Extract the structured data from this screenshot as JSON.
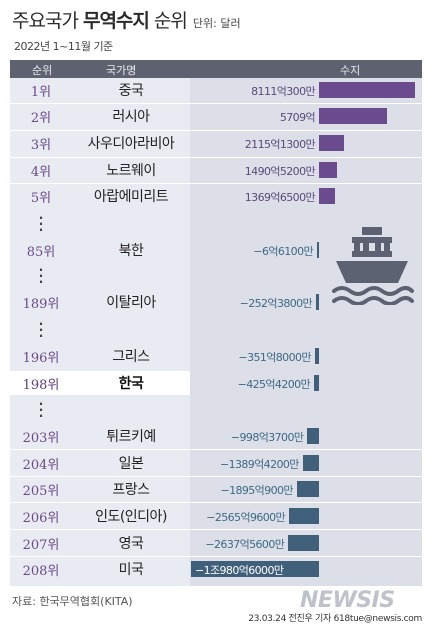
{
  "header_text": {
    "title_normal_1": "주요국가 ",
    "title_bold": "무역수지",
    "title_normal_2": " 순위",
    "unit": "단위: 달러",
    "subtitle": "2022년 1~11월 기준",
    "col_rank": "순위",
    "col_country": "국가명",
    "col_balance": "수지"
  },
  "chart_data": {
    "type": "bar",
    "title": "주요국가 무역수지 순위",
    "unit": "단위: 달러",
    "subtitle": "2022년 1~11월 기준",
    "columns": [
      "순위",
      "국가명",
      "수지"
    ],
    "value_unit": "억 달러",
    "rows": [
      {
        "rank": "1위",
        "country": "중국",
        "label": "8111억300만",
        "value": 8111.03,
        "highlight": false
      },
      {
        "rank": "2위",
        "country": "러시아",
        "label": "5709억",
        "value": 5709.0,
        "highlight": false
      },
      {
        "rank": "3위",
        "country": "사우디아라비아",
        "label": "2115억1300만",
        "value": 2115.13,
        "highlight": false
      },
      {
        "rank": "4위",
        "country": "노르웨이",
        "label": "1490억5200만",
        "value": 1490.52,
        "highlight": false
      },
      {
        "rank": "5위",
        "country": "아랍에미리트",
        "label": "1369억6500만",
        "value": 1369.65,
        "highlight": false
      },
      {
        "rank": "85위",
        "country": "북한",
        "label": "−6억6100만",
        "value": -6.61,
        "highlight": false
      },
      {
        "rank": "189위",
        "country": "이탈리아",
        "label": "−252억3800만",
        "value": -252.38,
        "highlight": false
      },
      {
        "rank": "196위",
        "country": "그리스",
        "label": "−351억8000만",
        "value": -351.8,
        "highlight": false
      },
      {
        "rank": "198위",
        "country": "한국",
        "label": "−425억4200만",
        "value": -425.42,
        "highlight": true
      },
      {
        "rank": "203위",
        "country": "튀르키예",
        "label": "−998억3700만",
        "value": -998.37,
        "highlight": false
      },
      {
        "rank": "204위",
        "country": "일본",
        "label": "−1389억4200만",
        "value": -1389.42,
        "highlight": false
      },
      {
        "rank": "205위",
        "country": "프랑스",
        "label": "−1895억900만",
        "value": -1895.09,
        "highlight": false
      },
      {
        "rank": "206위",
        "country": "인도(인디아)",
        "label": "−2565억9600만",
        "value": -2565.96,
        "highlight": false
      },
      {
        "rank": "207위",
        "country": "영국",
        "label": "−2637억5600만",
        "value": -2637.56,
        "highlight": false
      },
      {
        "rank": "208위",
        "country": "미국",
        "label": "−1조980억6000만",
        "value": -10980.6,
        "highlight": false
      }
    ],
    "colors": {
      "positive": "#6a4b8e",
      "negative": "#3f5f7a",
      "highlight_row": "#ffffff"
    }
  },
  "footer": {
    "source": "자료: 한국무역협회(KITA)",
    "credit": "23.03.24 전진우 기자 618tue@newsis.com",
    "logo": "NEWSIS"
  },
  "icons": {
    "illustration": "ship-icon"
  }
}
